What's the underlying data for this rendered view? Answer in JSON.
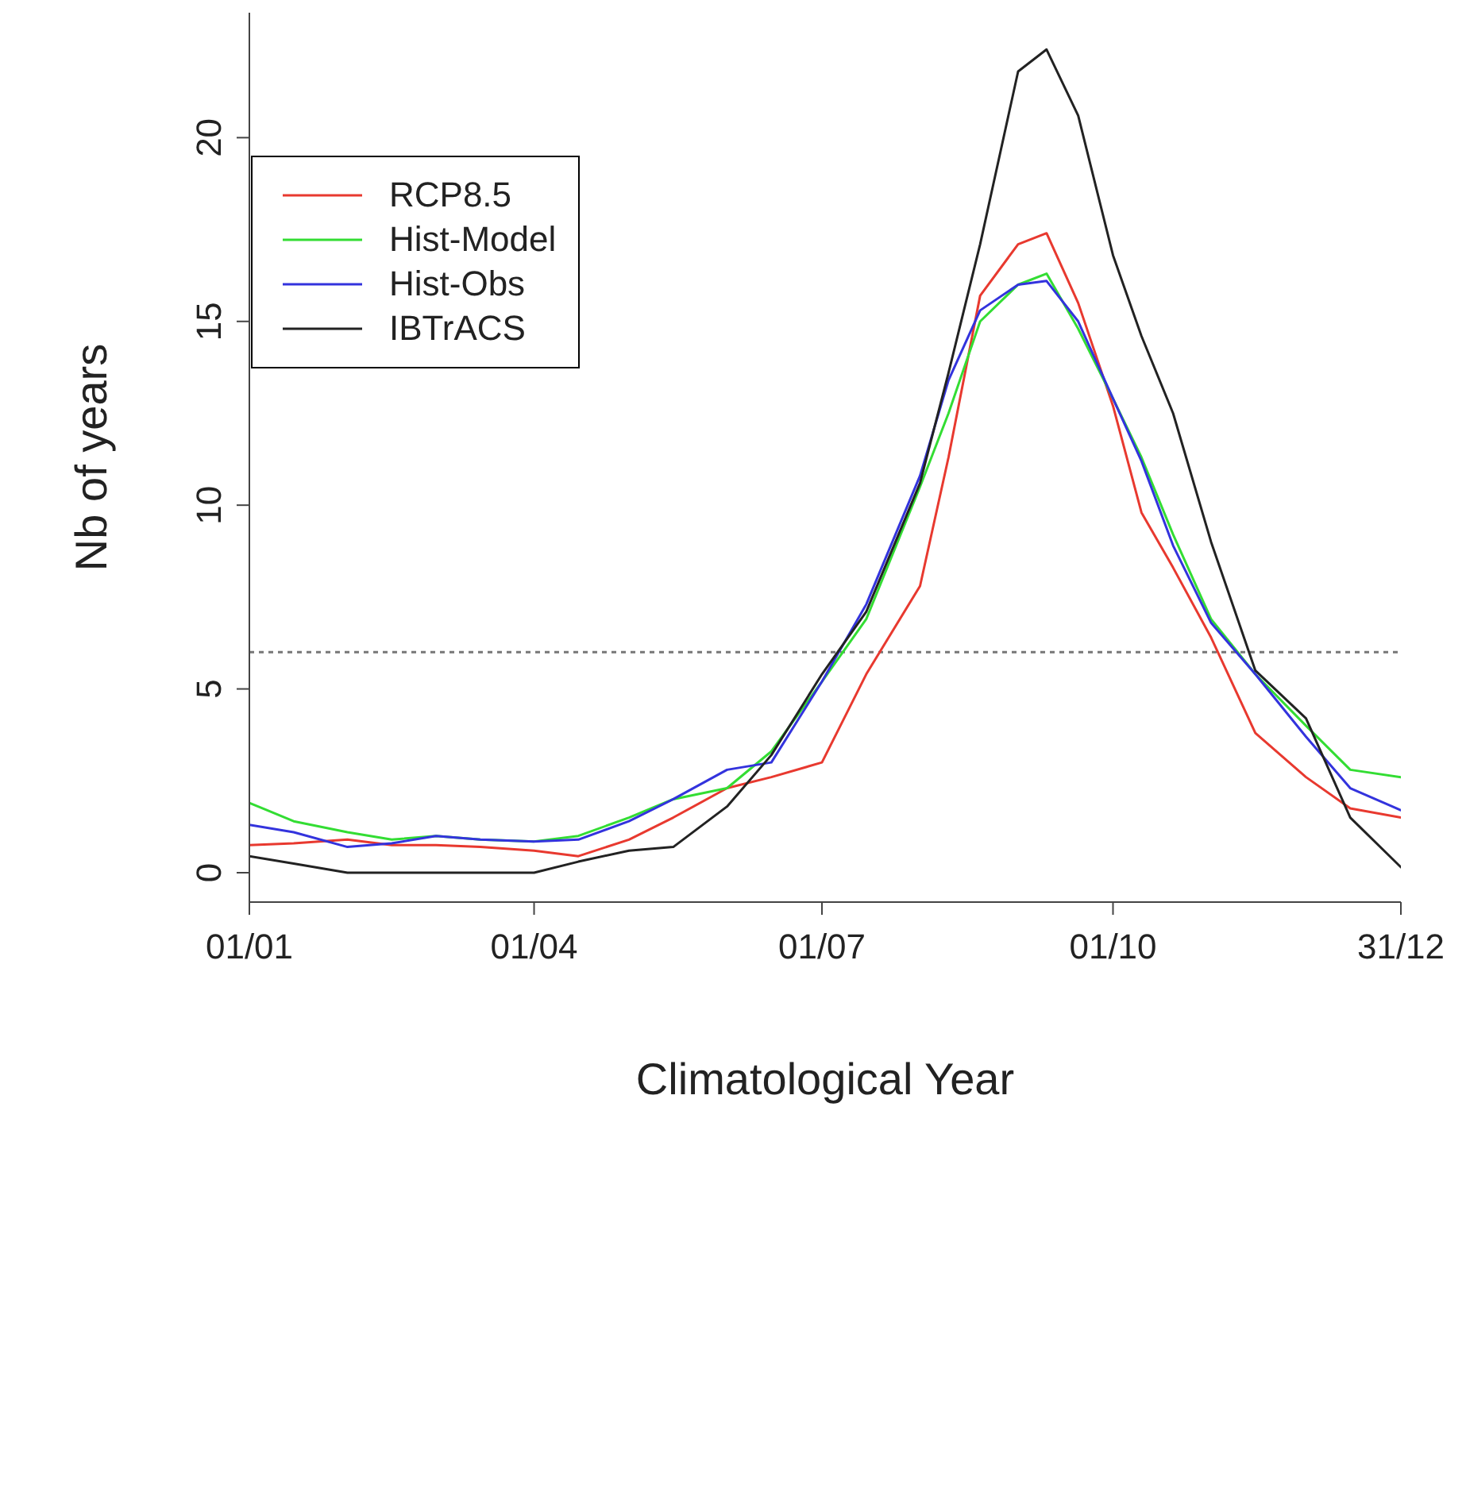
{
  "chart_data": [
    {
      "type": "line",
      "xlabel": "Climatological Year",
      "ylabel": "Nb of years",
      "x": [
        "--01-01",
        "--01-15",
        "--02-01",
        "--02-15",
        "--03-01",
        "--03-15",
        "--04-01",
        "--04-15",
        "--05-01",
        "--05-15",
        "--06-01",
        "--06-15",
        "--07-01",
        "--07-15",
        "--08-01",
        "--08-10",
        "--08-20",
        "--09-01",
        "--09-10",
        "--09-20",
        "--10-01",
        "--10-10",
        "--10-20",
        "--11-01",
        "--11-15",
        "--12-01",
        "--12-15",
        "--12-31"
      ],
      "series": [
        {
          "name": "RCP8.5",
          "color": "#e8392f",
          "values": [
            0.75,
            0.8,
            0.9,
            0.75,
            0.75,
            0.7,
            0.6,
            0.45,
            0.9,
            1.5,
            2.3,
            2.6,
            3.0,
            5.4,
            7.8,
            11.3,
            15.7,
            17.1,
            17.4,
            15.5,
            12.7,
            9.8,
            8.3,
            6.4,
            3.8,
            2.6,
            1.75,
            1.5
          ]
        },
        {
          "name": "Hist-Model",
          "color": "#33dd33",
          "values": [
            1.9,
            1.4,
            1.1,
            0.9,
            1.0,
            0.9,
            0.85,
            1.0,
            1.5,
            2.0,
            2.3,
            3.3,
            5.2,
            6.9,
            10.5,
            12.5,
            15.0,
            16.0,
            16.3,
            14.8,
            12.9,
            11.3,
            9.2,
            6.9,
            5.4,
            4.0,
            2.8,
            2.6
          ]
        },
        {
          "name": "Hist-Obs",
          "color": "#3333dd",
          "values": [
            1.3,
            1.1,
            0.7,
            0.8,
            1.0,
            0.9,
            0.85,
            0.9,
            1.4,
            2.0,
            2.8,
            3.0,
            5.2,
            7.3,
            10.8,
            13.4,
            15.3,
            16.0,
            16.1,
            15.0,
            12.9,
            11.2,
            8.9,
            6.8,
            5.4,
            3.7,
            2.3,
            1.7
          ]
        },
        {
          "name": "IBTrACS",
          "color": "#222222",
          "values": [
            0.45,
            0.25,
            0,
            0,
            0,
            0,
            0,
            0.3,
            0.6,
            0.7,
            1.8,
            3.2,
            5.4,
            7.1,
            10.6,
            13.6,
            17.1,
            21.8,
            22.4,
            20.6,
            16.8,
            14.6,
            12.5,
            9.0,
            5.5,
            4.2,
            1.5,
            0.15
          ]
        }
      ],
      "xlim": [
        "--01-01",
        "--12-31"
      ],
      "xticks": [
        {
          "value": "--01-01",
          "label": "01/01"
        },
        {
          "value": "--04-01",
          "label": "01/04"
        },
        {
          "value": "--07-01",
          "label": "01/07"
        },
        {
          "value": "--10-01",
          "label": "01/10"
        },
        {
          "value": "--12-31",
          "label": "31/12"
        }
      ],
      "ylim": [
        -0.8,
        23.4
      ],
      "yticks": [
        0,
        5,
        10,
        15,
        20
      ],
      "ref_lines": [
        {
          "axis": "y",
          "value": 6,
          "color": "#777777",
          "line_style": "dotted"
        }
      ],
      "legend": "top left",
      "marker": "none",
      "line_style": "solid"
    }
  ]
}
